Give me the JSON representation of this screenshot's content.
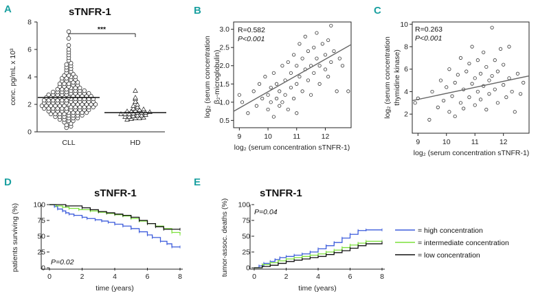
{
  "panels": [
    {
      "letter": "A",
      "title": "sTNFR-1",
      "ylabel": "conc. pg/mL x 10³",
      "yticks": [
        "0",
        "2",
        "4",
        "6",
        "8"
      ],
      "ylim": [
        0,
        8
      ],
      "categories": [
        "CLL",
        "HD"
      ],
      "significance": "***"
    },
    {
      "letter": "B",
      "ylabel_lines": [
        "log₂ (serum concentration",
        "β₂-microglobulin)"
      ],
      "xlabel": "log₂ (serum concentration sTNFR-1)",
      "xticks": [
        "9",
        "10",
        "11",
        "12"
      ],
      "yticks": [
        "0.5",
        "1.0",
        "1.5",
        "2.0",
        "2.5",
        "3.0"
      ],
      "xlim": [
        8.8,
        12.9
      ],
      "ylim": [
        0.3,
        3.2
      ],
      "stat_r": "R=0.582",
      "stat_p": "P<0.001"
    },
    {
      "letter": "C",
      "ylabel_lines": [
        "log₂ (serum concentration",
        "thymidine kinase)"
      ],
      "xlabel": "log₂ (serum concentration sTNFR-1)",
      "xticks": [
        "9",
        "10",
        "11",
        "12"
      ],
      "yticks": [
        "2",
        "4",
        "6",
        "8",
        "10"
      ],
      "xlim": [
        8.8,
        12.9
      ],
      "ylim": [
        0.3,
        10.2
      ],
      "stat_r": "R=0.263",
      "stat_p": "P<0.001"
    },
    {
      "letter": "D",
      "title": "sTNFR-1",
      "ylabel": "patients surviving (%)",
      "xlabel": "time (years)",
      "xticks": [
        "0",
        "2",
        "4",
        "6",
        "8"
      ],
      "yticks": [
        "0",
        "25",
        "50",
        "75",
        "100"
      ],
      "pvalue": "P=0.02"
    },
    {
      "letter": "E",
      "title": "sTNFR-1",
      "ylabel": "tumor-assoc. deaths (%)",
      "xlabel": "time (years)",
      "xticks": [
        "0",
        "2",
        "4",
        "6",
        "8"
      ],
      "yticks": [
        "0",
        "25",
        "50",
        "75",
        "100"
      ],
      "pvalue": "P=0.04"
    }
  ],
  "legend": [
    {
      "label": "= high concentration",
      "color": "#3b5bdb"
    },
    {
      "label": "= intermediate concentration",
      "color": "#7be03a"
    },
    {
      "label": "= low concentration",
      "color": "#111111"
    }
  ],
  "chart_data": [
    {
      "type": "scatter",
      "panel": "A",
      "title": "sTNFR-1",
      "ylabel": "conc. pg/mL x 10³",
      "categories": [
        "CLL",
        "HD"
      ],
      "ylim": [
        0,
        8
      ],
      "series": [
        {
          "name": "CLL",
          "marker": "circle",
          "values": [
            0.3,
            0.4,
            0.5,
            0.6,
            0.7,
            0.8,
            0.8,
            0.9,
            0.9,
            1.0,
            1.0,
            1.0,
            1.1,
            1.1,
            1.1,
            1.2,
            1.2,
            1.2,
            1.2,
            1.3,
            1.3,
            1.3,
            1.3,
            1.4,
            1.4,
            1.4,
            1.4,
            1.4,
            1.5,
            1.5,
            1.5,
            1.5,
            1.5,
            1.6,
            1.6,
            1.6,
            1.6,
            1.6,
            1.7,
            1.7,
            1.7,
            1.7,
            1.7,
            1.7,
            1.8,
            1.8,
            1.8,
            1.8,
            1.8,
            1.8,
            1.9,
            1.9,
            1.9,
            1.9,
            1.9,
            1.9,
            2.0,
            2.0,
            2.0,
            2.0,
            2.0,
            2.0,
            2.0,
            2.1,
            2.1,
            2.1,
            2.1,
            2.1,
            2.1,
            2.2,
            2.2,
            2.2,
            2.2,
            2.2,
            2.2,
            2.3,
            2.3,
            2.3,
            2.3,
            2.3,
            2.3,
            2.4,
            2.4,
            2.4,
            2.4,
            2.4,
            2.4,
            2.5,
            2.5,
            2.5,
            2.5,
            2.5,
            2.5,
            2.6,
            2.6,
            2.6,
            2.6,
            2.6,
            2.7,
            2.7,
            2.7,
            2.7,
            2.7,
            2.8,
            2.8,
            2.8,
            2.8,
            2.8,
            2.9,
            2.9,
            2.9,
            2.9,
            3.0,
            3.0,
            3.0,
            3.0,
            3.1,
            3.1,
            3.1,
            3.2,
            3.2,
            3.2,
            3.3,
            3.3,
            3.3,
            3.4,
            3.4,
            3.5,
            3.5,
            3.5,
            3.6,
            3.6,
            3.7,
            3.7,
            3.8,
            3.8,
            3.9,
            3.9,
            4.0,
            4.0,
            4.1,
            4.1,
            4.2,
            4.3,
            4.4,
            4.5,
            4.6,
            4.7,
            4.8,
            4.9,
            5.0,
            5.2,
            5.4,
            5.6,
            5.8,
            6.0,
            6.3,
            6.8,
            7.3
          ],
          "median": 2.5
        },
        {
          "name": "HD",
          "marker": "triangle",
          "values": [
            0.9,
            0.95,
            1.0,
            1.0,
            1.05,
            1.1,
            1.1,
            1.15,
            1.2,
            1.2,
            1.25,
            1.3,
            1.3,
            1.3,
            1.35,
            1.4,
            1.4,
            1.4,
            1.45,
            1.5,
            1.5,
            1.55,
            1.6,
            1.65,
            1.7,
            1.8,
            1.9,
            2.0,
            2.2,
            2.4,
            2.5,
            3.0
          ],
          "median": 1.4
        }
      ]
    },
    {
      "type": "scatter",
      "panel": "B",
      "xlabel": "log₂ (serum concentration sTNFR-1)",
      "ylabel": "log₂ (serum concentration β₂-microglobulin)",
      "xlim": [
        8.8,
        12.9
      ],
      "ylim": [
        0.3,
        3.2
      ],
      "regression": {
        "x": [
          8.8,
          12.9
        ],
        "y": [
          0.75,
          2.58
        ]
      },
      "points": [
        [
          9.0,
          1.2
        ],
        [
          9.1,
          1.0
        ],
        [
          9.3,
          0.7
        ],
        [
          9.5,
          1.3
        ],
        [
          9.6,
          0.9
        ],
        [
          9.7,
          1.5
        ],
        [
          9.8,
          1.1
        ],
        [
          9.9,
          1.7
        ],
        [
          10.0,
          0.8
        ],
        [
          10.0,
          1.2
        ],
        [
          10.1,
          1.0
        ],
        [
          10.1,
          1.4
        ],
        [
          10.2,
          0.6
        ],
        [
          10.2,
          1.8
        ],
        [
          10.3,
          1.1
        ],
        [
          10.3,
          1.5
        ],
        [
          10.4,
          0.9
        ],
        [
          10.4,
          1.3
        ],
        [
          10.5,
          2.0
        ],
        [
          10.5,
          1.0
        ],
        [
          10.6,
          1.6
        ],
        [
          10.6,
          1.2
        ],
        [
          10.7,
          0.8
        ],
        [
          10.7,
          2.1
        ],
        [
          10.8,
          1.4
        ],
        [
          10.8,
          1.8
        ],
        [
          10.9,
          1.1
        ],
        [
          10.9,
          2.3
        ],
        [
          11.0,
          1.5
        ],
        [
          11.0,
          2.0
        ],
        [
          11.0,
          0.7
        ],
        [
          11.1,
          1.7
        ],
        [
          11.1,
          2.6
        ],
        [
          11.2,
          1.3
        ],
        [
          11.2,
          2.2
        ],
        [
          11.3,
          1.9
        ],
        [
          11.3,
          2.8
        ],
        [
          11.4,
          1.6
        ],
        [
          11.4,
          2.4
        ],
        [
          11.5,
          2.0
        ],
        [
          11.5,
          1.2
        ],
        [
          11.6,
          2.5
        ],
        [
          11.6,
          1.8
        ],
        [
          11.7,
          2.2
        ],
        [
          11.7,
          2.9
        ],
        [
          11.8,
          1.5
        ],
        [
          11.8,
          2.0
        ],
        [
          11.9,
          2.6
        ],
        [
          12.0,
          1.9
        ],
        [
          12.0,
          2.3
        ],
        [
          12.1,
          2.7
        ],
        [
          12.1,
          1.7
        ],
        [
          12.2,
          3.1
        ],
        [
          12.2,
          2.1
        ],
        [
          12.3,
          2.4
        ],
        [
          12.4,
          1.3
        ],
        [
          12.5,
          2.2
        ],
        [
          12.6,
          2.0
        ],
        [
          12.8,
          1.3
        ]
      ]
    },
    {
      "type": "scatter",
      "panel": "C",
      "xlabel": "log₂ (serum concentration sTNFR-1)",
      "ylabel": "log₂ (serum concentration thymidine kinase)",
      "xlim": [
        8.8,
        12.9
      ],
      "ylim": [
        0.3,
        10.2
      ],
      "regression": {
        "x": [
          8.8,
          12.9
        ],
        "y": [
          3.2,
          5.4
        ]
      },
      "points": [
        [
          8.9,
          3.0
        ],
        [
          9.0,
          3.4
        ],
        [
          9.4,
          1.5
        ],
        [
          9.5,
          4.0
        ],
        [
          9.7,
          2.6
        ],
        [
          9.8,
          5.0
        ],
        [
          9.9,
          3.2
        ],
        [
          10.0,
          4.4
        ],
        [
          10.1,
          2.2
        ],
        [
          10.1,
          6.0
        ],
        [
          10.2,
          3.6
        ],
        [
          10.3,
          4.8
        ],
        [
          10.3,
          1.8
        ],
        [
          10.4,
          5.5
        ],
        [
          10.5,
          3.0
        ],
        [
          10.5,
          7.0
        ],
        [
          10.6,
          4.2
        ],
        [
          10.6,
          2.5
        ],
        [
          10.7,
          5.8
        ],
        [
          10.8,
          3.5
        ],
        [
          10.8,
          6.5
        ],
        [
          10.9,
          4.7
        ],
        [
          10.9,
          8.0
        ],
        [
          11.0,
          2.8
        ],
        [
          11.0,
          5.2
        ],
        [
          11.1,
          4.0
        ],
        [
          11.1,
          6.8
        ],
        [
          11.2,
          3.3
        ],
        [
          11.2,
          5.6
        ],
        [
          11.3,
          7.5
        ],
        [
          11.3,
          4.5
        ],
        [
          11.4,
          2.4
        ],
        [
          11.4,
          6.2
        ],
        [
          11.5,
          5.0
        ],
        [
          11.5,
          3.8
        ],
        [
          11.6,
          9.7
        ],
        [
          11.6,
          5.4
        ],
        [
          11.7,
          6.8
        ],
        [
          11.7,
          4.2
        ],
        [
          11.8,
          3.0
        ],
        [
          11.8,
          5.8
        ],
        [
          11.9,
          7.8
        ],
        [
          12.0,
          4.6
        ],
        [
          12.0,
          6.4
        ],
        [
          12.1,
          3.5
        ],
        [
          12.2,
          5.2
        ],
        [
          12.2,
          8.0
        ],
        [
          12.3,
          4.0
        ],
        [
          12.4,
          2.2
        ],
        [
          12.5,
          5.6
        ],
        [
          12.6,
          3.8
        ],
        [
          12.7,
          4.8
        ]
      ]
    },
    {
      "type": "line",
      "panel": "D",
      "title": "sTNFR-1",
      "xlabel": "time (years)",
      "ylabel": "patients surviving (%)",
      "xlim": [
        0,
        8
      ],
      "ylim": [
        0,
        100
      ],
      "series": [
        {
          "name": "high concentration",
          "color": "#3b5bdb",
          "x": [
            0,
            0.3,
            0.5,
            0.8,
            1.0,
            1.2,
            1.5,
            2.0,
            2.3,
            2.8,
            3.2,
            3.6,
            4.0,
            4.5,
            5.0,
            5.5,
            6.0,
            6.3,
            6.8,
            7.2,
            7.5,
            8.0
          ],
          "y": [
            100,
            97,
            93,
            90,
            87,
            85,
            83,
            80,
            78,
            76,
            74,
            72,
            69,
            66,
            62,
            57,
            52,
            48,
            42,
            38,
            33,
            33
          ]
        },
        {
          "name": "intermediate concentration",
          "color": "#7be03a",
          "x": [
            0,
            0.4,
            0.8,
            1.2,
            1.8,
            2.5,
            3.0,
            3.5,
            4.0,
            4.5,
            5.0,
            5.5,
            6.0,
            6.5,
            7.0,
            7.5,
            8.0
          ],
          "y": [
            100,
            98,
            96,
            94,
            92,
            90,
            88,
            86,
            84,
            82,
            78,
            74,
            70,
            66,
            62,
            56,
            53
          ]
        },
        {
          "name": "low concentration",
          "color": "#111111",
          "x": [
            0,
            1.0,
            2.0,
            2.5,
            3.0,
            3.5,
            4.0,
            4.5,
            5.0,
            5.5,
            6.0,
            6.5,
            7.0,
            8.0
          ],
          "y": [
            100,
            98,
            95,
            92,
            89,
            87,
            85,
            83,
            80,
            75,
            70,
            65,
            61,
            61
          ]
        }
      ]
    },
    {
      "type": "line",
      "panel": "E",
      "title": "sTNFR-1",
      "xlabel": "time (years)",
      "ylabel": "tumor-assoc. deaths (%)",
      "xlim": [
        0,
        8
      ],
      "ylim": [
        0,
        100
      ],
      "series": [
        {
          "name": "high concentration",
          "color": "#3b5bdb",
          "x": [
            0,
            0.3,
            0.6,
            1.0,
            1.3,
            1.6,
            2.0,
            2.5,
            3.0,
            3.5,
            4.0,
            4.5,
            5.0,
            5.5,
            6.0,
            6.5,
            7.0,
            8.0
          ],
          "y": [
            0,
            3,
            7,
            10,
            13,
            16,
            18,
            20,
            22,
            25,
            30,
            35,
            40,
            47,
            53,
            59,
            60,
            60
          ]
        },
        {
          "name": "intermediate concentration",
          "color": "#7be03a",
          "x": [
            0,
            0.5,
            1.0,
            1.5,
            2.0,
            2.5,
            3.0,
            3.5,
            4.0,
            4.5,
            5.0,
            5.5,
            6.0,
            6.5,
            7.0,
            8.0
          ],
          "y": [
            0,
            5,
            8,
            11,
            14,
            16,
            18,
            20,
            22,
            25,
            28,
            32,
            36,
            39,
            42,
            42
          ]
        },
        {
          "name": "low concentration",
          "color": "#111111",
          "x": [
            0,
            0.5,
            1.0,
            1.5,
            2.0,
            2.5,
            3.0,
            3.5,
            4.0,
            4.5,
            5.0,
            5.5,
            6.0,
            6.5,
            7.0,
            8.0
          ],
          "y": [
            0,
            2,
            4,
            7,
            10,
            12,
            14,
            16,
            18,
            21,
            24,
            27,
            31,
            35,
            38,
            40
          ]
        }
      ]
    }
  ]
}
